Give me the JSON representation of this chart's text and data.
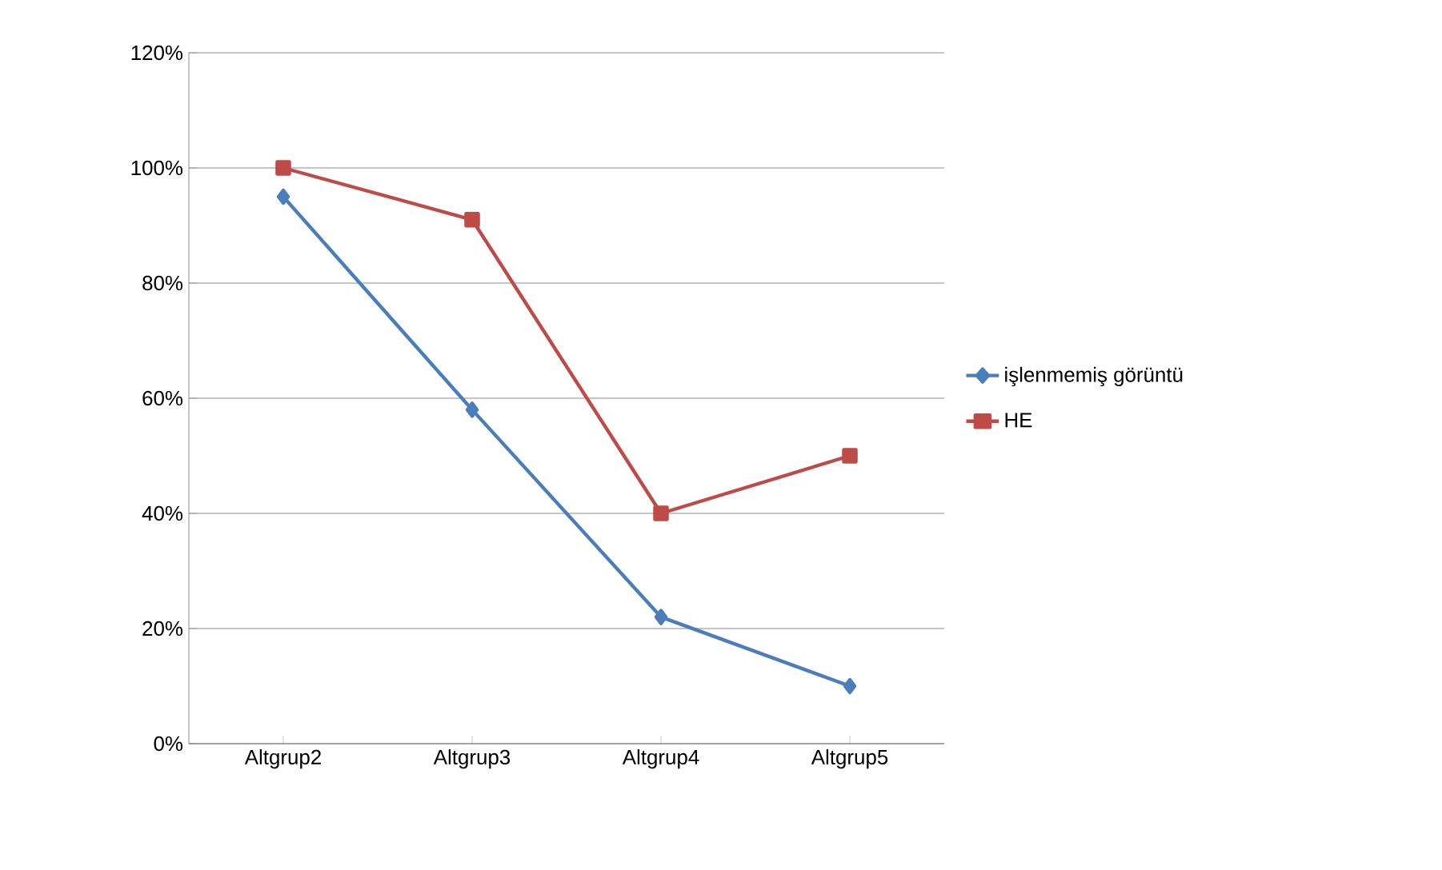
{
  "chart_data": {
    "type": "line",
    "categories": [
      "Altgrup2",
      "Altgrup3",
      "Altgrup4",
      "Altgrup5"
    ],
    "series": [
      {
        "name": "işlenmemiş görüntü",
        "color": "#4a7ebb",
        "marker": "diamond",
        "values": [
          95,
          58,
          22,
          10
        ]
      },
      {
        "name": "HE",
        "color": "#be4b48",
        "marker": "square",
        "values": [
          100,
          91,
          40,
          50
        ]
      }
    ],
    "ylim": [
      0,
      120
    ],
    "yticks": [
      {
        "value": 0,
        "label": "0%"
      },
      {
        "value": 20,
        "label": "20%"
      },
      {
        "value": 40,
        "label": "40%"
      },
      {
        "value": 60,
        "label": "60%"
      },
      {
        "value": 80,
        "label": "80%"
      },
      {
        "value": 100,
        "label": "100%"
      },
      {
        "value": 120,
        "label": "120%"
      }
    ],
    "grid": "y",
    "legend": "right"
  }
}
